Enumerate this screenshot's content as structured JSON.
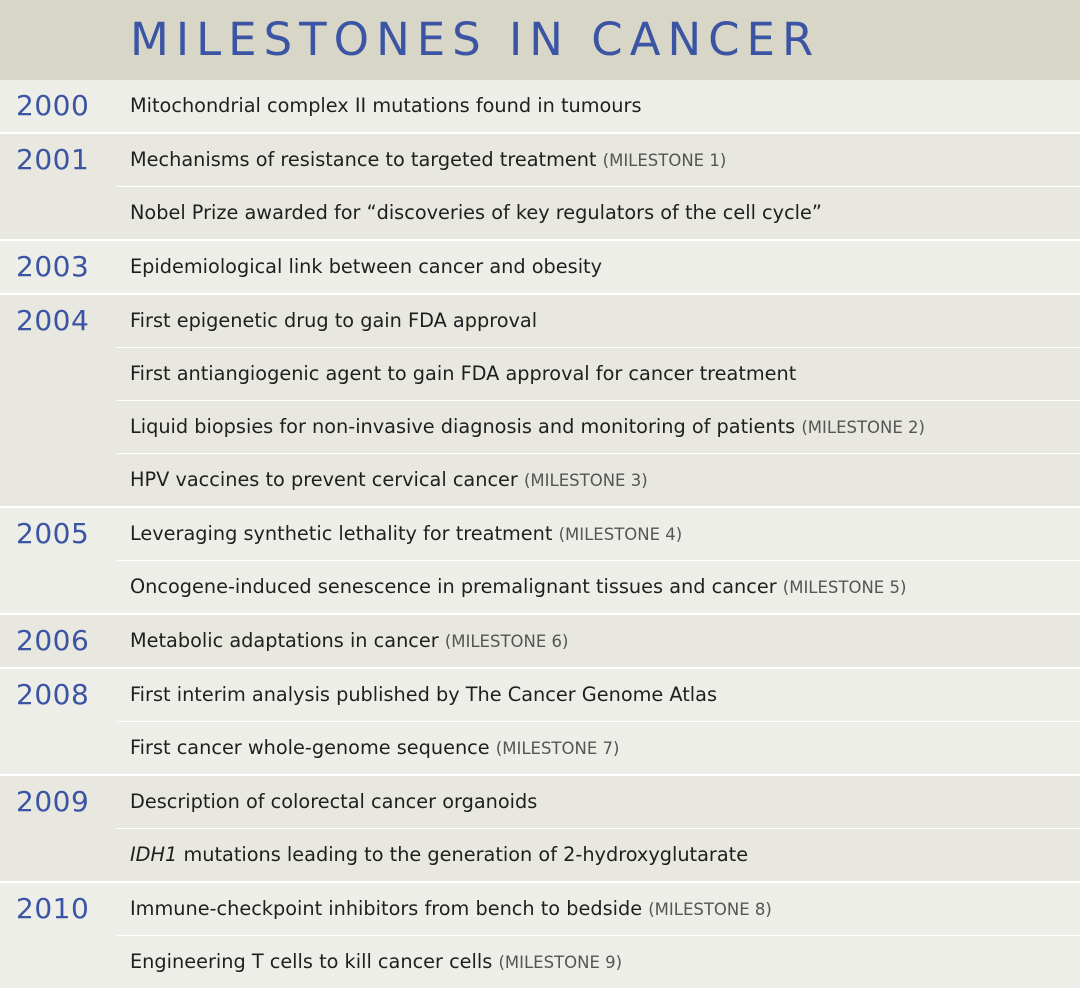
{
  "title": "MILESTONES IN CANCER",
  "groups": [
    {
      "year": "2000",
      "events": [
        {
          "text": "Mitochondrial complex II mutations found in tumours",
          "milestone": ""
        }
      ]
    },
    {
      "year": "2001",
      "events": [
        {
          "text": "Mechanisms of resistance to targeted treatment",
          "milestone": "(MILESTONE 1)"
        },
        {
          "text": "Nobel Prize awarded for “discoveries of key regulators of the cell cycle”",
          "milestone": ""
        }
      ]
    },
    {
      "year": "2003",
      "events": [
        {
          "text": "Epidemiological link between cancer and obesity",
          "milestone": ""
        }
      ]
    },
    {
      "year": "2004",
      "events": [
        {
          "text": "First epigenetic drug to gain FDA approval",
          "milestone": ""
        },
        {
          "text": "First antiangiogenic agent to gain FDA approval for cancer treatment",
          "milestone": ""
        },
        {
          "text": "Liquid biopsies for non-invasive diagnosis and monitoring of patients",
          "milestone": "(MILESTONE 2)"
        },
        {
          "text": "HPV vaccines to prevent cervical cancer",
          "milestone": "(MILESTONE 3)"
        }
      ]
    },
    {
      "year": "2005",
      "events": [
        {
          "text": "Leveraging synthetic lethality for treatment",
          "milestone": "(MILESTONE 4)"
        },
        {
          "text": "Oncogene-induced senescence in premalignant tissues and cancer",
          "milestone": "(MILESTONE 5)"
        }
      ]
    },
    {
      "year": "2006",
      "events": [
        {
          "text": "Metabolic adaptations in cancer",
          "milestone": "(MILESTONE 6)"
        }
      ]
    },
    {
      "year": "2008",
      "events": [
        {
          "text": "First interim analysis published by The Cancer Genome Atlas",
          "milestone": ""
        },
        {
          "text": "First cancer whole-genome sequence",
          "milestone": "(MILESTONE 7)"
        }
      ]
    },
    {
      "year": "2009",
      "events": [
        {
          "text": "Description of colorectal cancer organoids",
          "milestone": ""
        },
        {
          "italic": "IDH1",
          "text": " mutations leading to the generation of 2-hydroxyglutarate",
          "milestone": ""
        }
      ]
    },
    {
      "year": "2010",
      "events": [
        {
          "text": "Immune-checkpoint inhibitors from bench to bedside",
          "milestone": "(MILESTONE 8)"
        },
        {
          "text": "Engineering T cells to kill cancer cells",
          "milestone": "(MILESTONE 9)"
        }
      ]
    }
  ]
}
